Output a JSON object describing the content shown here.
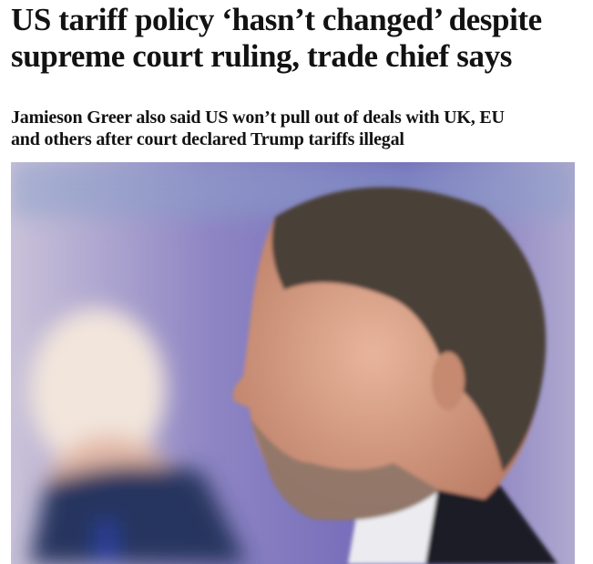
{
  "article": {
    "headline": "US tariff policy ‘hasn’t changed’ despite supreme court ruling, trade chief says",
    "standfirst": "Jamieson Greer also said US won’t pull out of deals with UK, EU and others after court declared Trump tariffs illegal"
  }
}
